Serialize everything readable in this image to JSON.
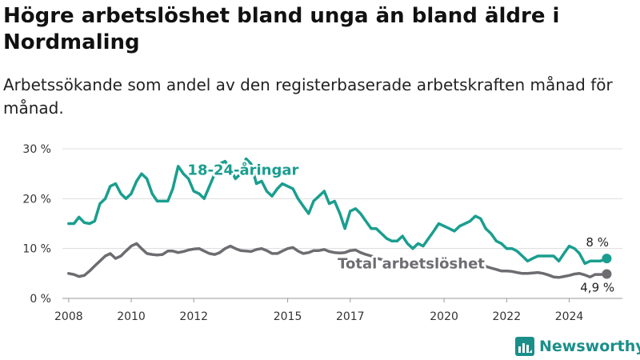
{
  "header": {
    "title": "Högre arbetslöshet bland unga än bland äldre i Nordmaling",
    "subtitle": "Arbetssökande som andel av den registerbaserade arbetskraften månad för månad."
  },
  "brand": {
    "name": "Newsworthy",
    "icon": "bar-chart-logo-icon",
    "color": "#1a8f8a"
  },
  "chart_data": {
    "type": "line",
    "title": "Högre arbetslöshet bland unga än bland äldre i Nordmaling",
    "subtitle": "Arbetssökande som andel av den registerbaserade arbetskraften månad för månad.",
    "xlabel": "",
    "ylabel": "",
    "xlim": [
      2007.8,
      2025.7
    ],
    "ylim": [
      0,
      30
    ],
    "yticks": [
      0,
      10,
      20,
      30
    ],
    "ytick_labels": [
      "0 %",
      "10 %",
      "20 %",
      "30 %"
    ],
    "xticks": [
      2008,
      2010,
      2012,
      2015,
      2017,
      2020,
      2022,
      2024
    ],
    "xtick_labels": [
      "2008",
      "2010",
      "2012",
      "2015",
      "2017",
      "2020",
      "2022",
      "2024"
    ],
    "grid": "horizontal",
    "legend": "inline labels",
    "series": [
      {
        "name": "18-24-åringar",
        "color": "#1a9e8f",
        "end_label": "8 %",
        "x": [
          2008.0,
          2008.17,
          2008.33,
          2008.5,
          2008.67,
          2008.83,
          2009.0,
          2009.17,
          2009.33,
          2009.5,
          2009.67,
          2009.83,
          2010.0,
          2010.17,
          2010.33,
          2010.5,
          2010.67,
          2010.83,
          2011.0,
          2011.17,
          2011.33,
          2011.5,
          2011.67,
          2011.83,
          2012.0,
          2012.17,
          2012.33,
          2012.5,
          2012.67,
          2012.83,
          2013.0,
          2013.17,
          2013.33,
          2013.5,
          2013.67,
          2013.83,
          2014.0,
          2014.17,
          2014.33,
          2014.5,
          2014.67,
          2014.83,
          2015.0,
          2015.17,
          2015.33,
          2015.5,
          2015.67,
          2015.83,
          2016.0,
          2016.17,
          2016.33,
          2016.5,
          2016.67,
          2016.83,
          2017.0,
          2017.17,
          2017.33,
          2017.5,
          2017.67,
          2017.83,
          2018.0,
          2018.17,
          2018.33,
          2018.5,
          2018.67,
          2018.83,
          2019.0,
          2019.17,
          2019.33,
          2019.5,
          2019.67,
          2019.83,
          2020.0,
          2020.17,
          2020.33,
          2020.5,
          2020.67,
          2020.83,
          2021.0,
          2021.17,
          2021.33,
          2021.5,
          2021.67,
          2021.83,
          2022.0,
          2022.17,
          2022.33,
          2022.5,
          2022.67,
          2022.83,
          2023.0,
          2023.17,
          2023.33,
          2023.5,
          2023.67,
          2023.83,
          2024.0,
          2024.17,
          2024.33,
          2024.5,
          2024.67,
          2024.83,
          2025.0,
          2025.2
        ],
        "y": [
          15,
          15,
          16.3,
          15.2,
          15,
          15.5,
          19,
          20,
          22.5,
          23,
          21,
          20,
          21,
          23.5,
          25,
          24,
          21,
          19.5,
          19.5,
          19.5,
          22,
          26.5,
          25,
          24,
          21.5,
          21,
          20,
          22.5,
          25,
          27,
          27.5,
          26,
          24,
          25,
          28,
          27,
          23,
          23.5,
          21.5,
          20.5,
          22,
          23,
          22.5,
          22,
          20,
          18.5,
          17,
          19.5,
          20.5,
          21.5,
          19,
          19.5,
          17,
          14,
          17.5,
          18,
          17,
          15.5,
          14,
          14,
          13,
          12,
          11.5,
          11.5,
          12.5,
          11,
          10,
          11,
          10.5,
          12,
          13.5,
          15,
          14.5,
          14,
          13.5,
          14.5,
          15,
          15.5,
          16.5,
          16,
          14,
          13,
          11.5,
          11,
          10,
          10,
          9.5,
          8.5,
          7.5,
          8,
          8.5,
          8.5,
          8.5,
          8.5,
          7.5,
          9,
          10.5,
          10,
          9,
          7,
          7.5,
          7.5,
          7.5,
          8
        ]
      },
      {
        "name": "Total arbetslöshet",
        "color": "#6e6c70",
        "end_label": "4,9 %",
        "x": [
          2008.0,
          2008.17,
          2008.33,
          2008.5,
          2008.67,
          2008.83,
          2009.0,
          2009.17,
          2009.33,
          2009.5,
          2009.67,
          2009.83,
          2010.0,
          2010.17,
          2010.33,
          2010.5,
          2010.67,
          2010.83,
          2011.0,
          2011.17,
          2011.33,
          2011.5,
          2011.67,
          2011.83,
          2012.0,
          2012.17,
          2012.33,
          2012.5,
          2012.67,
          2012.83,
          2013.0,
          2013.17,
          2013.33,
          2013.5,
          2013.67,
          2013.83,
          2014.0,
          2014.17,
          2014.33,
          2014.5,
          2014.67,
          2014.83,
          2015.0,
          2015.17,
          2015.33,
          2015.5,
          2015.67,
          2015.83,
          2016.0,
          2016.17,
          2016.33,
          2016.5,
          2016.67,
          2016.83,
          2017.0,
          2017.17,
          2017.33,
          2017.5,
          2017.67,
          2017.83,
          2018.0,
          2018.17,
          2018.33,
          2018.5,
          2018.67,
          2018.83,
          2019.0,
          2019.17,
          2019.33,
          2019.5,
          2019.67,
          2019.83,
          2020.0,
          2020.17,
          2020.33,
          2020.5,
          2020.67,
          2020.83,
          2021.0,
          2021.17,
          2021.33,
          2021.5,
          2021.67,
          2021.83,
          2022.0,
          2022.17,
          2022.33,
          2022.5,
          2022.67,
          2022.83,
          2023.0,
          2023.17,
          2023.33,
          2023.5,
          2023.67,
          2023.83,
          2024.0,
          2024.17,
          2024.33,
          2024.5,
          2024.67,
          2024.83,
          2025.0,
          2025.2
        ],
        "y": [
          5,
          4.8,
          4.4,
          4.6,
          5.5,
          6.5,
          7.5,
          8.5,
          9,
          8,
          8.5,
          9.5,
          10.5,
          11,
          10,
          9,
          8.8,
          8.7,
          8.8,
          9.5,
          9.5,
          9.2,
          9.4,
          9.7,
          9.9,
          10,
          9.5,
          9,
          8.8,
          9.2,
          10,
          10.5,
          10,
          9.6,
          9.5,
          9.4,
          9.8,
          10,
          9.6,
          9,
          9,
          9.5,
          10,
          10.2,
          9.5,
          9,
          9.2,
          9.6,
          9.6,
          9.8,
          9.4,
          9.2,
          9.1,
          9.2,
          9.6,
          9.7,
          9.2,
          8.8,
          8.5,
          8.1,
          7.8,
          7.5,
          7.3,
          7.2,
          7.3,
          7.2,
          7.0,
          6.8,
          6.8,
          7.0,
          7.1,
          7.0,
          6.8,
          6.7,
          6.8,
          7.0,
          6.9,
          6.6,
          6.6,
          6.7,
          6.4,
          6.1,
          5.8,
          5.5,
          5.5,
          5.4,
          5.2,
          5.0,
          5.0,
          5.1,
          5.2,
          5.0,
          4.7,
          4.3,
          4.2,
          4.4,
          4.6,
          4.9,
          5.0,
          4.7,
          4.3,
          4.8,
          4.8,
          4.9
        ]
      }
    ]
  }
}
